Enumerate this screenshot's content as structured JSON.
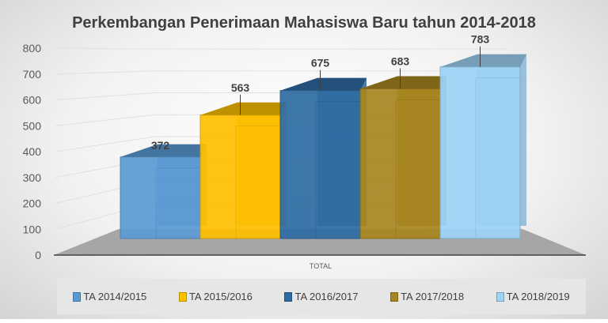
{
  "chart_data": {
    "type": "bar",
    "title": "Perkembangan Penerimaan Mahasiswa Baru tahun 2014-2018",
    "categories": [
      "TOTAL"
    ],
    "xlabel": "",
    "ylabel": "",
    "ylim": [
      0,
      800
    ],
    "yticks": [
      "0",
      "100",
      "200",
      "300",
      "400",
      "500",
      "600",
      "700",
      "800"
    ],
    "grid": true,
    "legend_position": "bottom",
    "series": [
      {
        "name": "TA 2014/2015",
        "values": [
          372
        ],
        "label": "372",
        "color": "#5b9bd5"
      },
      {
        "name": "TA 2015/2016",
        "values": [
          563
        ],
        "label": "563",
        "color": "#ffc000"
      },
      {
        "name": "TA 2016/2017",
        "values": [
          675
        ],
        "label": "675",
        "color": "#2e6ca4"
      },
      {
        "name": "TA 2017/2018",
        "values": [
          683
        ],
        "label": "683",
        "color": "#a8861f"
      },
      {
        "name": "TA 2018/2019",
        "values": [
          783
        ],
        "label": "783",
        "color": "#9dd3f7"
      }
    ]
  }
}
